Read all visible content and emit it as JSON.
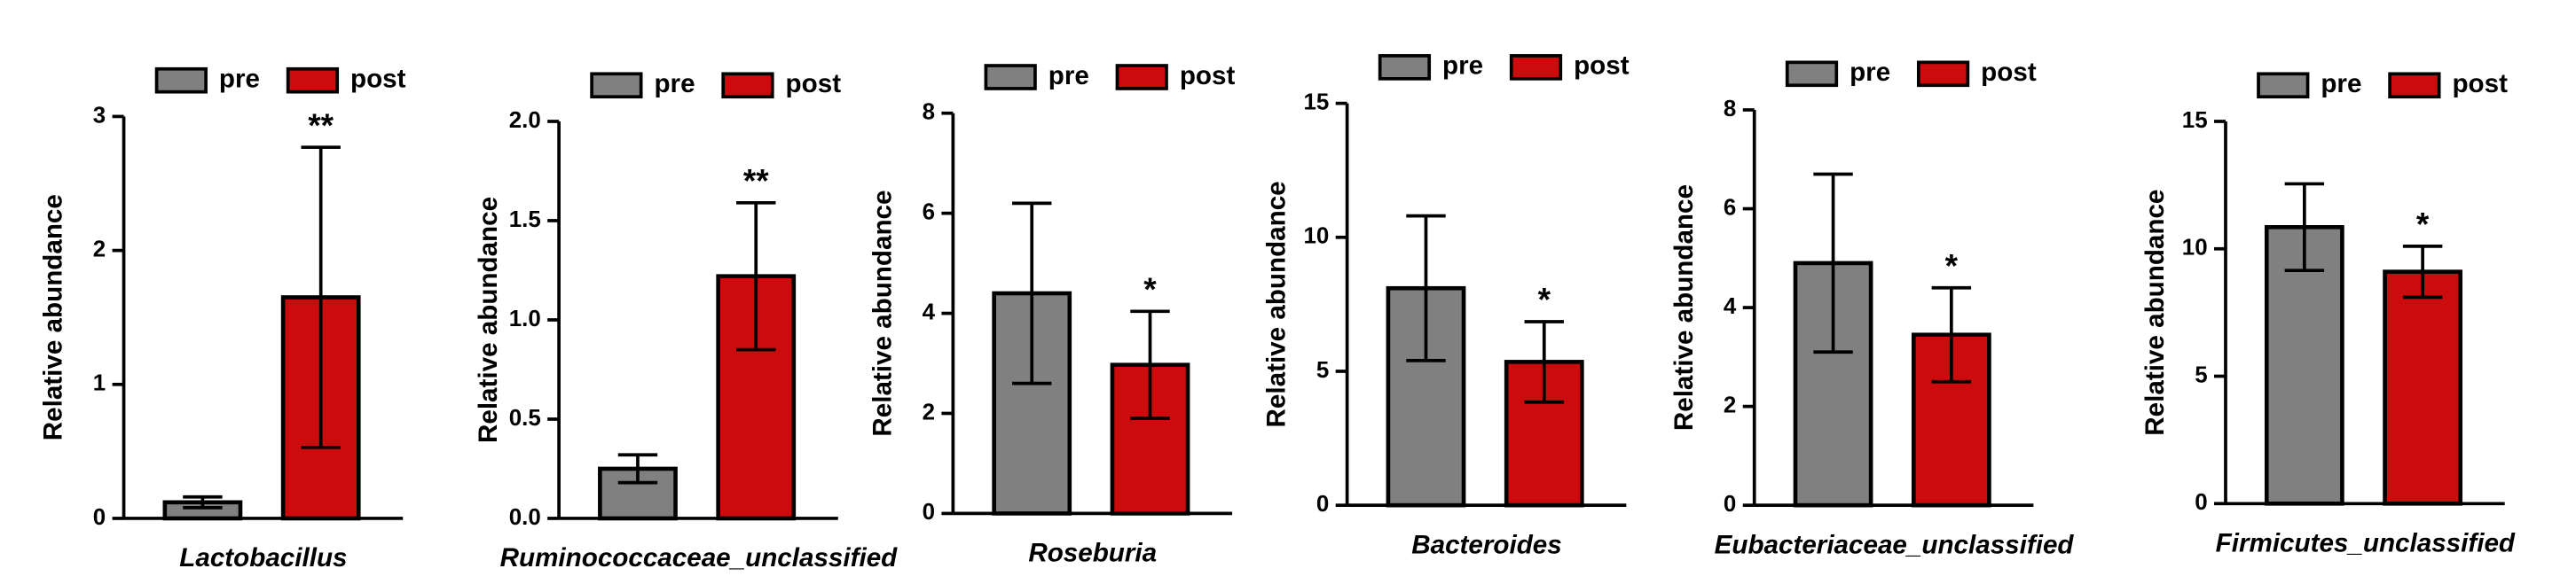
{
  "chart_data": [
    {
      "type": "bar",
      "categories": [
        "Lactobacillus"
      ],
      "ylabel": "Relative abundance",
      "annotation": "**",
      "ylim": [
        0,
        3
      ],
      "yticks": [
        0,
        1,
        2,
        3
      ],
      "series": [
        {
          "name": "pre",
          "color": "#808080",
          "values": [
            0.12
          ],
          "errors": [
            0.04
          ]
        },
        {
          "name": "post",
          "color": "#cc0c0c",
          "values": [
            1.65
          ],
          "errors": [
            1.12
          ]
        }
      ]
    },
    {
      "type": "bar",
      "categories": [
        "Ruminococcaceae_unclassified"
      ],
      "ylabel": "Relative abundance",
      "annotation": "**",
      "ylim": [
        0,
        2
      ],
      "yticks": [
        {
          "value": 0,
          "label": "0.0"
        },
        0.5,
        {
          "value": 1,
          "label": "1.0"
        },
        1.5,
        {
          "value": 2,
          "label": "2.0"
        }
      ],
      "series": [
        {
          "name": "pre",
          "color": "#808080",
          "values": [
            0.25
          ],
          "errors": [
            0.07
          ]
        },
        {
          "name": "post",
          "color": "#cc0c0c",
          "values": [
            1.22
          ],
          "errors": [
            0.37
          ]
        }
      ]
    },
    {
      "type": "bar",
      "categories": [
        "Roseburia"
      ],
      "ylabel": "Relative abundance",
      "annotation": "*",
      "ylim": [
        0,
        8
      ],
      "yticks": [
        0,
        2,
        4,
        6,
        8
      ],
      "series": [
        {
          "name": "pre",
          "color": "#808080",
          "values": [
            4.4
          ],
          "errors": [
            1.8
          ]
        },
        {
          "name": "post",
          "color": "#cc0c0c",
          "values": [
            2.97
          ],
          "errors": [
            1.07
          ]
        }
      ]
    },
    {
      "type": "bar",
      "categories": [
        "Bacteroides"
      ],
      "ylabel": "Relative abundance",
      "annotation": "*",
      "ylim": [
        0,
        15
      ],
      "yticks": [
        0,
        5,
        10,
        15
      ],
      "series": [
        {
          "name": "pre",
          "color": "#808080",
          "values": [
            8.1
          ],
          "errors": [
            2.7
          ]
        },
        {
          "name": "post",
          "color": "#cc0c0c",
          "values": [
            5.35
          ],
          "errors": [
            1.5
          ]
        }
      ]
    },
    {
      "type": "bar",
      "categories": [
        "Eubacteriaceae_unclassified"
      ],
      "ylabel": "Relative abundance",
      "annotation": "*",
      "ylim": [
        0,
        8
      ],
      "yticks": [
        0,
        2,
        4,
        6,
        8
      ],
      "series": [
        {
          "name": "pre",
          "color": "#808080",
          "values": [
            4.9
          ],
          "errors": [
            1.8
          ]
        },
        {
          "name": "post",
          "color": "#cc0c0c",
          "values": [
            3.45
          ],
          "errors": [
            0.95
          ]
        }
      ]
    },
    {
      "type": "bar",
      "categories": [
        "Firmicutes_unclassified"
      ],
      "ylabel": "Relative abundance",
      "annotation": "*",
      "ylim": [
        0,
        15
      ],
      "yticks": [
        0,
        5,
        10,
        15
      ],
      "series": [
        {
          "name": "pre",
          "color": "#808080",
          "values": [
            10.85
          ],
          "errors": [
            1.7
          ]
        },
        {
          "name": "post",
          "color": "#cc0c0c",
          "values": [
            9.1
          ],
          "errors": [
            1.0
          ]
        }
      ]
    }
  ]
}
